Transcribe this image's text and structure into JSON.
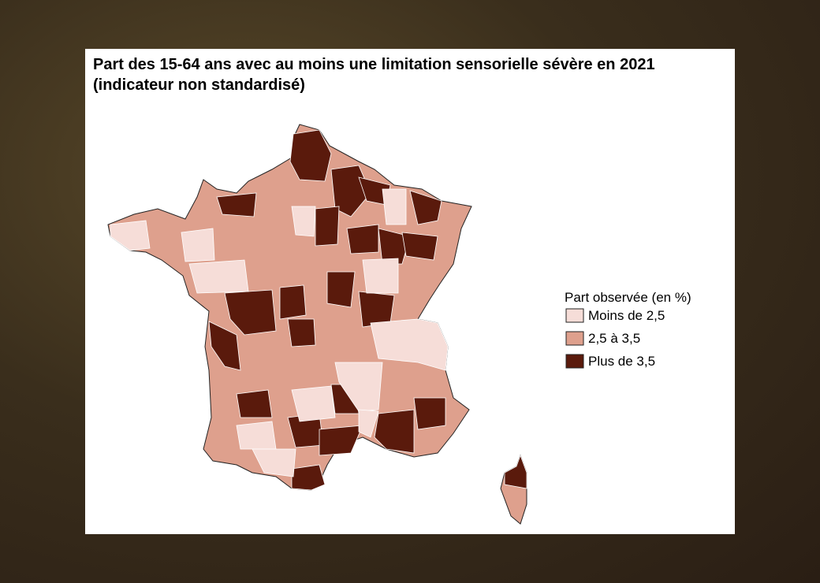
{
  "title": "Part des 15-64 ans avec au moins une limitation sensorielle sévère en 2021",
  "subtitle": "(indicateur non standardisé)",
  "legend": {
    "title": "Part observée (en %)",
    "items": [
      {
        "label": "Moins de 2,5",
        "color": "#f6ddd8"
      },
      {
        "label": "2,5 à 3,5",
        "color": "#dea08d"
      },
      {
        "label": "Plus de 3,5",
        "color": "#5a1a0c"
      }
    ]
  }
}
